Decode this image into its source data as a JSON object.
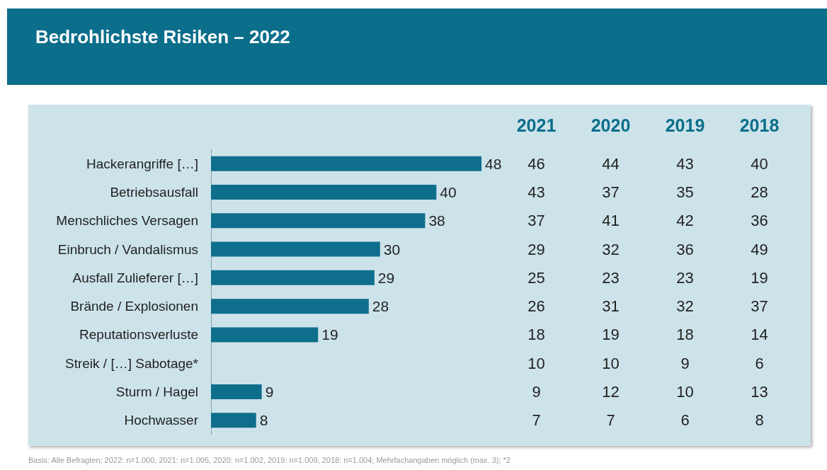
{
  "chart_data": [
    {
      "type": "bar",
      "orientation": "horizontal",
      "title": "Bedrohlichste Risiken – 2022",
      "categories": [
        "Hackerangriffe […]",
        "Betriebsausfall",
        "Menschliches Versagen",
        "Einbruch / Vandalismus",
        "Ausfall Zulieferer […]",
        "Brände / Explosionen",
        "Reputationsverluste",
        "Streik / […] Sabotage*",
        "Sturm / Hagel",
        "Hochwasser"
      ],
      "values": [
        48,
        40,
        38,
        30,
        29,
        28,
        19,
        null,
        9,
        8
      ],
      "color": "#0e6e8c",
      "data_labels": true,
      "annotations": [
        "Basis: Alle Befragten; 2022: n=1.000, 2021: n=1.005, 2020: n=1.002, 2019: n=1.009, 2018: n=1.004; Mehrfachangaben möglich (max. 3); *2"
      ]
    },
    {
      "type": "heatmap",
      "categories": [
        "2021",
        "2020",
        "2019",
        "2018"
      ],
      "y_categories": [
        null,
        null,
        null,
        null,
        null,
        null,
        null,
        null,
        null,
        null
      ],
      "cells": [
        [
          46,
          44,
          43,
          40
        ],
        [
          43,
          37,
          35,
          28
        ],
        [
          37,
          41,
          42,
          36
        ],
        [
          29,
          32,
          36,
          49
        ],
        [
          25,
          23,
          23,
          19
        ],
        [
          26,
          31,
          32,
          37
        ],
        [
          18,
          19,
          18,
          14
        ],
        [
          10,
          10,
          9,
          6
        ],
        [
          9,
          12,
          10,
          13
        ],
        [
          7,
          7,
          6,
          8
        ]
      ],
      "data_labels": true
    }
  ]
}
